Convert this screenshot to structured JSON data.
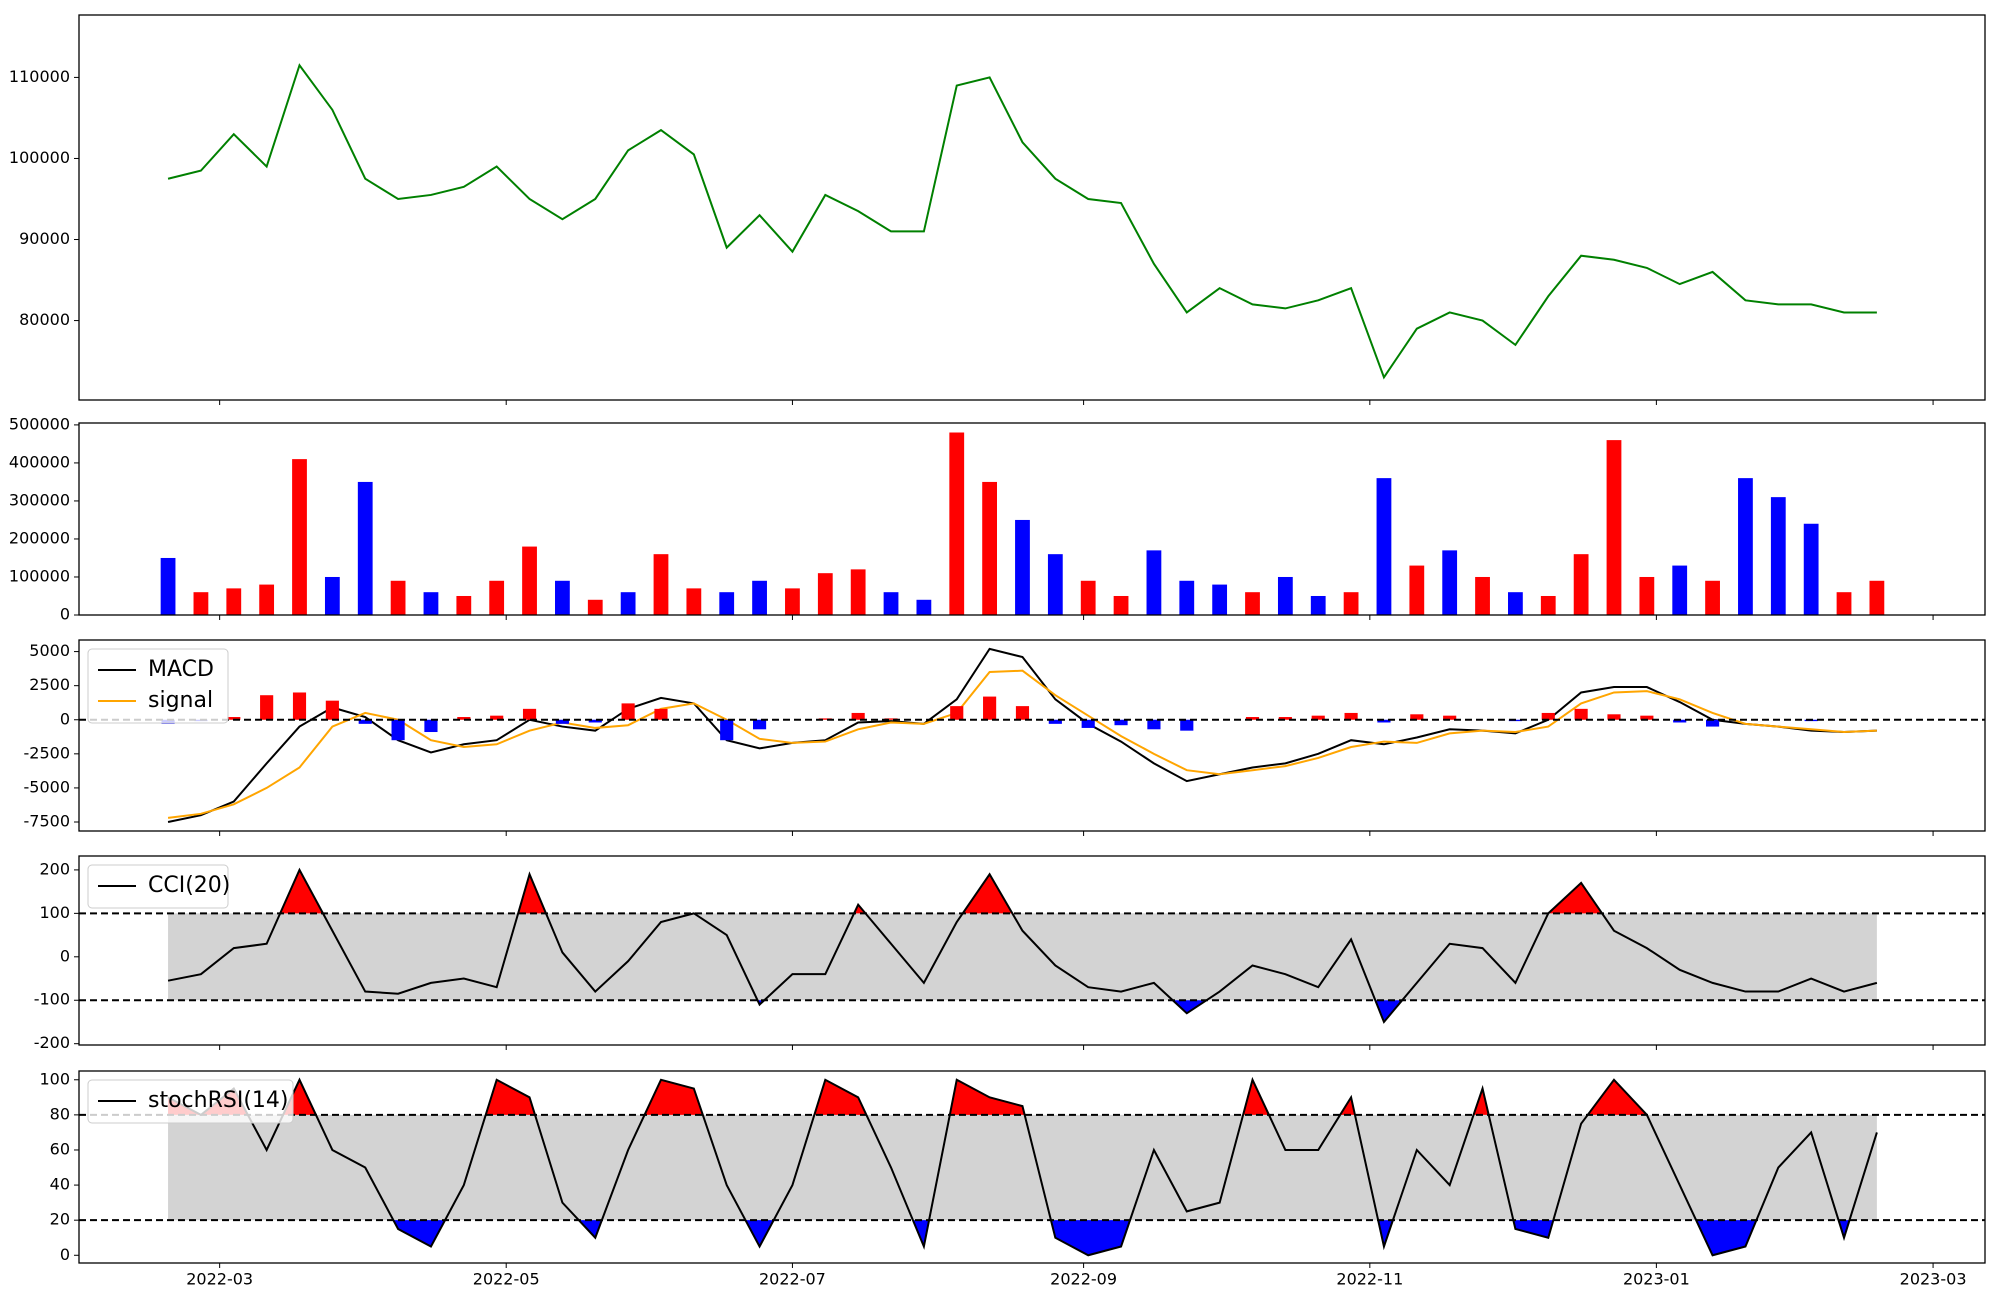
{
  "chart_data": [
    {
      "type": "line",
      "ylim": [
        70200,
        117700
      ],
      "yticks": [
        80000,
        90000,
        100000,
        110000
      ],
      "series": [
        {
          "color": "#008000",
          "values": [
            97500,
            98500,
            103000,
            99000,
            111500,
            106000,
            97500,
            95000,
            95500,
            96500,
            99000,
            95000,
            92500,
            95000,
            101000,
            103500,
            100500,
            89000,
            93000,
            88500,
            95500,
            93500,
            91000,
            91000,
            109000,
            110000,
            102000,
            97500,
            95000,
            94500,
            87000,
            81000,
            84000,
            82000,
            81500,
            82500,
            84000,
            73000,
            79000,
            81000,
            80000,
            77000,
            83000,
            88000,
            87500,
            86500,
            84500,
            86000,
            82500,
            82000,
            82000,
            81000,
            81000
          ]
        }
      ]
    },
    {
      "type": "bar",
      "ylim": [
        0,
        505000
      ],
      "yticks": [
        0,
        100000,
        200000,
        300000,
        400000,
        500000
      ],
      "series": [
        {
          "values": [
            150000,
            60000,
            70000,
            80000,
            410000,
            100000,
            350000,
            90000,
            60000,
            50000,
            90000,
            180000,
            90000,
            40000,
            60000,
            160000,
            70000,
            60000,
            90000,
            70000,
            110000,
            120000,
            60000,
            40000,
            480000,
            350000,
            250000,
            160000,
            90000,
            50000,
            170000,
            90000,
            80000,
            60000,
            100000,
            50000,
            60000,
            360000,
            130000,
            170000,
            100000,
            60000,
            50000,
            160000,
            460000,
            100000,
            130000,
            90000,
            360000,
            310000,
            240000,
            60000,
            90000
          ],
          "colors": [
            "blue",
            "red",
            "red",
            "red",
            "red",
            "blue",
            "blue",
            "red",
            "blue",
            "red",
            "red",
            "red",
            "blue",
            "red",
            "blue",
            "red",
            "red",
            "blue",
            "blue",
            "red",
            "red",
            "red",
            "blue",
            "blue",
            "red",
            "red",
            "blue",
            "blue",
            "red",
            "red",
            "blue",
            "blue",
            "blue",
            "red",
            "blue",
            "blue",
            "red",
            "blue",
            "red",
            "blue",
            "red",
            "blue",
            "red",
            "red",
            "red",
            "red",
            "blue",
            "red",
            "blue",
            "blue",
            "blue",
            "red",
            "red"
          ]
        }
      ]
    },
    {
      "type": "line",
      "ylim": [
        -8160,
        5850
      ],
      "yticks": [
        -7500,
        -5000,
        -2500,
        0,
        2500,
        5000
      ],
      "hlines": [
        0
      ],
      "legend": "upper left",
      "series": [
        {
          "name": "MACD",
          "color": "black",
          "values": [
            -7500,
            -7000,
            -6000,
            -3200,
            -500,
            900,
            200,
            -1500,
            -2400,
            -1800,
            -1500,
            0,
            -500,
            -800,
            800,
            1600,
            1200,
            -1500,
            -2100,
            -1700,
            -1500,
            -200,
            -100,
            -300,
            1500,
            5200,
            4600,
            1500,
            -300,
            -1600,
            -3200,
            -4500,
            -4000,
            -3500,
            -3200,
            -2500,
            -1500,
            -1800,
            -1300,
            -700,
            -800,
            -1000,
            0,
            2000,
            2400,
            2400,
            1300,
            0,
            -300,
            -500,
            -800,
            -900,
            -800
          ]
        },
        {
          "name": "signal",
          "color": "orange",
          "values": [
            -7200,
            -6900,
            -6200,
            -5000,
            -3500,
            -500,
            500,
            0,
            -1500,
            -2000,
            -1800,
            -800,
            -200,
            -600,
            -400,
            800,
            1200,
            0,
            -1400,
            -1700,
            -1600,
            -700,
            -200,
            -300,
            500,
            3500,
            3600,
            1800,
            300,
            -1200,
            -2500,
            -3700,
            -4000,
            -3700,
            -3400,
            -2800,
            -2000,
            -1600,
            -1700,
            -1000,
            -800,
            -900,
            -500,
            1200,
            2000,
            2100,
            1500,
            500,
            -300,
            -500,
            -700,
            -900,
            -800
          ]
        },
        {
          "kind": "bar",
          "pos_color": "red",
          "neg_color": "blue",
          "values": [
            -300,
            -100,
            200,
            1800,
            2000,
            1400,
            -300,
            -1500,
            -900,
            200,
            300,
            800,
            -300,
            -200,
            1200,
            800,
            0,
            -1500,
            -700,
            0,
            100,
            500,
            100,
            0,
            1000,
            1700,
            1000,
            -300,
            -600,
            -400,
            -700,
            -800,
            0,
            200,
            200,
            300,
            500,
            -200,
            400,
            300,
            0,
            -100,
            500,
            800,
            400,
            300,
            -200,
            -500,
            0,
            0,
            -100,
            0,
            0
          ]
        }
      ]
    },
    {
      "type": "line",
      "ylim": [
        -203,
        232
      ],
      "yticks": [
        -200,
        -100,
        0,
        100,
        200
      ],
      "hlines": [
        100,
        -100
      ],
      "band_color": "#d3d3d3",
      "fill_above_color": "red",
      "fill_below_color": "blue",
      "legend": "upper left",
      "series": [
        {
          "name": "CCI(20)",
          "color": "black",
          "values": [
            -55,
            -40,
            20,
            30,
            200,
            60,
            -80,
            -85,
            -60,
            -50,
            -70,
            190,
            10,
            -80,
            -10,
            80,
            100,
            50,
            -110,
            -40,
            -40,
            120,
            30,
            -60,
            80,
            190,
            60,
            -20,
            -70,
            -80,
            -60,
            -130,
            -80,
            -20,
            -40,
            -70,
            40,
            -150,
            -60,
            30,
            20,
            -60,
            100,
            170,
            60,
            20,
            -30,
            -60,
            -80,
            -80,
            -50,
            -80,
            -60
          ]
        }
      ]
    },
    {
      "type": "line",
      "ylim": [
        -4.4,
        105
      ],
      "yticks": [
        0,
        20,
        40,
        60,
        80,
        100
      ],
      "hlines": [
        80,
        20
      ],
      "band_color": "#d3d3d3",
      "fill_above_color": "red",
      "fill_below_color": "blue",
      "legend": "upper left",
      "xlim": [
        -2.71,
        55.29
      ],
      "xticks": [
        {
          "value": 1.57,
          "label": "2022-03"
        },
        {
          "value": 10.29,
          "label": "2022-05"
        },
        {
          "value": 19.0,
          "label": "2022-07"
        },
        {
          "value": 27.86,
          "label": "2022-09"
        },
        {
          "value": 36.57,
          "label": "2022-11"
        },
        {
          "value": 45.29,
          "label": "2023-01"
        },
        {
          "value": 53.71,
          "label": "2023-03"
        }
      ],
      "series": [
        {
          "name": "stochRSI(14)",
          "color": "black",
          "values": [
            90,
            80,
            95,
            60,
            100,
            60,
            50,
            15,
            5,
            40,
            100,
            90,
            30,
            10,
            60,
            100,
            95,
            40,
            5,
            40,
            100,
            90,
            50,
            5,
            100,
            90,
            85,
            10,
            0,
            5,
            60,
            25,
            30,
            100,
            60,
            60,
            90,
            5,
            60,
            40,
            95,
            15,
            10,
            75,
            100,
            80,
            40,
            0,
            5,
            50,
            70,
            10,
            70
          ]
        }
      ]
    }
  ]
}
